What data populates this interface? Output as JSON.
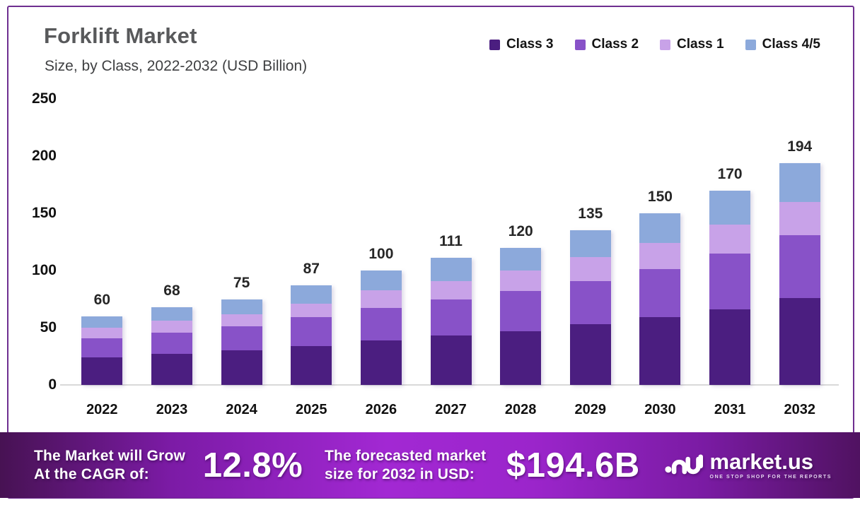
{
  "header": {
    "title": "Forklift Market",
    "subtitle": "Size, by Class, 2022-2032 (USD Billion)"
  },
  "legend": [
    {
      "label": "Class 3",
      "color": "#4b1e80"
    },
    {
      "label": "Class 2",
      "color": "#8852c8"
    },
    {
      "label": "Class 1",
      "color": "#c8a2e8"
    },
    {
      "label": "Class 4/5",
      "color": "#8ca9db"
    }
  ],
  "chart_data": {
    "type": "bar",
    "stacked": true,
    "title": "Forklift Market Size, by Class, 2022-2032 (USD Billion)",
    "categories": [
      2022,
      2023,
      2024,
      2025,
      2026,
      2027,
      2028,
      2029,
      2030,
      2031,
      2032
    ],
    "series": [
      {
        "name": "Class 3",
        "color": "#4b1e80",
        "values": [
          24,
          27,
          30,
          34,
          39,
          43,
          47,
          53,
          59,
          66,
          76
        ]
      },
      {
        "name": "Class 2",
        "color": "#8852c8",
        "values": [
          17,
          19,
          21,
          25,
          28,
          32,
          35,
          38,
          42,
          49,
          55
        ]
      },
      {
        "name": "Class 1",
        "color": "#c8a2e8",
        "values": [
          9,
          10,
          11,
          12,
          16,
          16,
          18,
          21,
          23,
          25,
          29
        ]
      },
      {
        "name": "Class 4/5",
        "color": "#8ca9db",
        "values": [
          10,
          12,
          13,
          16,
          17,
          20,
          20,
          23,
          26,
          30,
          34
        ]
      }
    ],
    "totals": [
      60,
      68,
      75,
      87,
      100,
      111,
      120,
      135,
      150,
      170,
      194
    ],
    "xlabel": "",
    "ylabel": "",
    "ylim": [
      0,
      250
    ],
    "yticks": [
      0,
      50,
      100,
      150,
      200,
      250
    ],
    "grid": false,
    "legend_position": "top-right"
  },
  "banner": {
    "cagr_label_line1": "The Market will Grow",
    "cagr_label_line2": "At the CAGR of:",
    "cagr_value": "12.8%",
    "forecast_label_line1": "The forecasted market",
    "forecast_label_line2": "size for 2032 in USD:",
    "forecast_value": "$194.6B",
    "logo_text": "market.us",
    "logo_tagline": "ONE STOP SHOP FOR THE REPORTS"
  },
  "colors": {
    "frame_border": "#6e2e90",
    "banner_gradient_left": "#471253",
    "banner_gradient_mid": "#a228d3",
    "banner_gradient_right": "#501261",
    "title_text": "#58595b",
    "axis_text": "#101010"
  }
}
